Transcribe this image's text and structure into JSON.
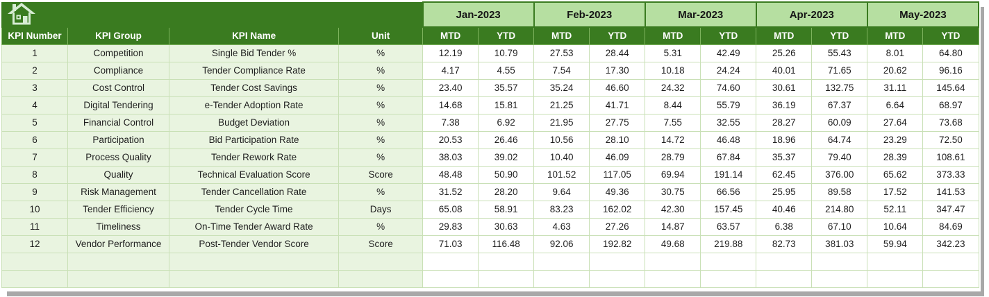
{
  "app": {
    "home_icon": "home-icon",
    "home_icon_color": "#d7ecd4"
  },
  "colors": {
    "dark_green": "#3a7b20",
    "month_header_green": "#b6dfa1",
    "row_label_green": "#e9f4e0",
    "gridline_green": "#c9e0b6",
    "shadow_gray": "#a8a8a8",
    "header_text": "#ffffff",
    "body_text": "#1f1f1f"
  },
  "columns": {
    "kpi_number": "KPI Number",
    "kpi_group": "KPI Group",
    "kpi_name": "KPI Name",
    "unit": "Unit",
    "mtd": "MTD",
    "ytd": "YTD"
  },
  "months": [
    "Jan-2023",
    "Feb-2023",
    "Mar-2023",
    "Apr-2023",
    "May-2023"
  ],
  "rows": [
    {
      "number": "1",
      "group": "Competition",
      "name": "Single Bid Tender %",
      "unit": "%",
      "values": [
        "12.19",
        "10.79",
        "27.53",
        "28.44",
        "5.31",
        "42.49",
        "25.26",
        "55.43",
        "8.01",
        "64.80"
      ]
    },
    {
      "number": "2",
      "group": "Compliance",
      "name": "Tender Compliance Rate",
      "unit": "%",
      "values": [
        "4.17",
        "4.55",
        "7.54",
        "17.30",
        "10.18",
        "24.24",
        "40.01",
        "71.65",
        "20.62",
        "96.16"
      ]
    },
    {
      "number": "3",
      "group": "Cost Control",
      "name": "Tender Cost Savings",
      "unit": "%",
      "values": [
        "23.40",
        "35.57",
        "35.24",
        "46.60",
        "24.32",
        "74.60",
        "30.61",
        "132.75",
        "31.11",
        "145.64"
      ]
    },
    {
      "number": "4",
      "group": "Digital Tendering",
      "name": "e-Tender Adoption Rate",
      "unit": "%",
      "values": [
        "14.68",
        "15.81",
        "21.25",
        "41.71",
        "8.44",
        "55.79",
        "36.19",
        "67.37",
        "6.64",
        "68.97"
      ]
    },
    {
      "number": "5",
      "group": "Financial Control",
      "name": "Budget Deviation",
      "unit": "%",
      "values": [
        "7.38",
        "6.92",
        "21.95",
        "27.75",
        "7.55",
        "32.55",
        "28.27",
        "60.09",
        "27.64",
        "73.68"
      ]
    },
    {
      "number": "6",
      "group": "Participation",
      "name": "Bid Participation Rate",
      "unit": "%",
      "values": [
        "20.53",
        "26.46",
        "10.56",
        "28.10",
        "14.72",
        "46.48",
        "18.96",
        "64.74",
        "23.29",
        "72.50"
      ]
    },
    {
      "number": "7",
      "group": "Process Quality",
      "name": "Tender Rework Rate",
      "unit": "%",
      "values": [
        "38.03",
        "39.02",
        "10.40",
        "46.09",
        "28.79",
        "67.84",
        "35.37",
        "79.40",
        "28.39",
        "108.61"
      ]
    },
    {
      "number": "8",
      "group": "Quality",
      "name": "Technical Evaluation Score",
      "unit": "Score",
      "values": [
        "48.48",
        "50.90",
        "101.52",
        "117.05",
        "69.94",
        "191.14",
        "62.45",
        "376.00",
        "65.62",
        "373.33"
      ]
    },
    {
      "number": "9",
      "group": "Risk Management",
      "name": "Tender Cancellation Rate",
      "unit": "%",
      "values": [
        "31.52",
        "28.20",
        "9.64",
        "49.36",
        "30.75",
        "66.56",
        "25.95",
        "89.58",
        "17.52",
        "141.53"
      ]
    },
    {
      "number": "10",
      "group": "Tender Efficiency",
      "name": "Tender Cycle Time",
      "unit": "Days",
      "values": [
        "65.08",
        "58.91",
        "83.23",
        "162.02",
        "42.30",
        "157.45",
        "40.46",
        "214.80",
        "52.11",
        "347.47"
      ]
    },
    {
      "number": "11",
      "group": "Timeliness",
      "name": "On-Time Tender Award Rate",
      "unit": "%",
      "values": [
        "29.83",
        "30.63",
        "4.63",
        "27.26",
        "14.87",
        "63.57",
        "6.38",
        "67.10",
        "10.64",
        "84.69"
      ]
    },
    {
      "number": "12",
      "group": "Vendor Performance",
      "name": "Post-Tender Vendor Score",
      "unit": "Score",
      "values": [
        "71.03",
        "116.48",
        "92.06",
        "192.82",
        "49.68",
        "219.88",
        "82.73",
        "381.03",
        "59.94",
        "342.23"
      ]
    }
  ],
  "empty_row_count": 2
}
